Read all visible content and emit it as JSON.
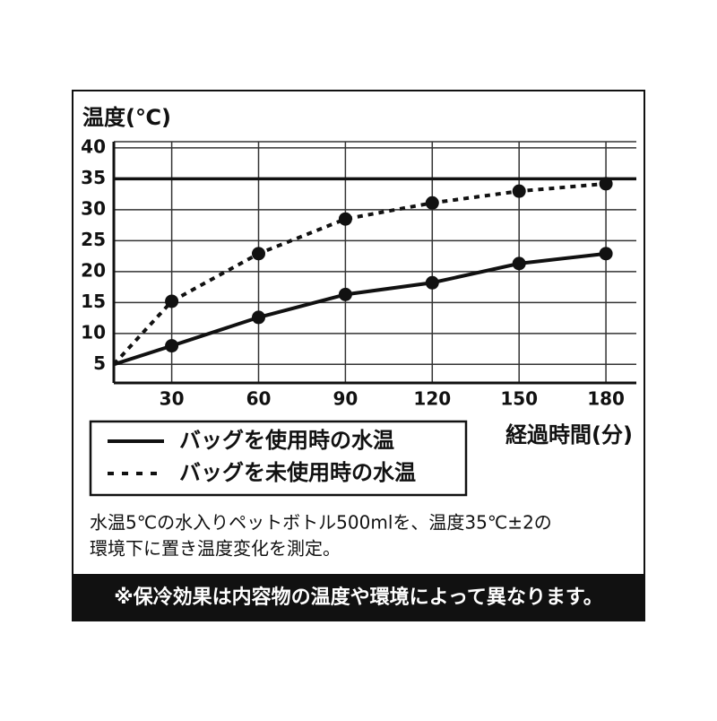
{
  "chart_data": {
    "type": "line",
    "ylabel": "温度(℃)",
    "xlabel": "経過時間(分)",
    "x": [
      10,
      30,
      60,
      90,
      120,
      150,
      180
    ],
    "series": [
      {
        "name": "バッグを使用時の水温",
        "color": "#111111",
        "style": "solid",
        "values": [
          5,
          8,
          12.6,
          16.3,
          18.2,
          21.3,
          22.9
        ]
      },
      {
        "name": "バッグを未使用時の水温",
        "color": "#111111",
        "style": "dashed",
        "values": [
          5,
          15.2,
          22.9,
          28.5,
          31.1,
          33,
          34.2
        ]
      }
    ],
    "hline": 35,
    "xlim": [
      10,
      190.5
    ],
    "xticks": [
      30,
      60,
      90,
      120,
      150,
      180
    ],
    "ylim": [
      2,
      41
    ],
    "yticks": [
      5,
      10,
      15,
      20,
      25,
      30,
      35,
      40
    ],
    "grid": true,
    "note": [
      "水温5℃の水入りペットボトル500mlを、温度35℃±2の",
      "環境下に置き温度変化を測定。"
    ],
    "footer": "※保冷効果は内容物の温度や環境によって異なります。"
  }
}
